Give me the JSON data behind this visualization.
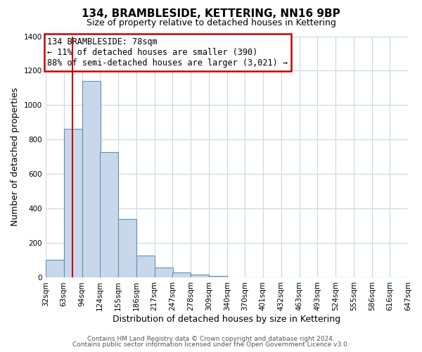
{
  "title": "134, BRAMBLESIDE, KETTERING, NN16 9BP",
  "subtitle": "Size of property relative to detached houses in Kettering",
  "xlabel": "Distribution of detached houses by size in Kettering",
  "ylabel": "Number of detached properties",
  "bar_left_edges": [
    32,
    63,
    94,
    124,
    155,
    186,
    217,
    247,
    278,
    309,
    340,
    370,
    401,
    432,
    463,
    493,
    524,
    555,
    586,
    616
  ],
  "bar_heights": [
    105,
    865,
    1140,
    730,
    340,
    130,
    60,
    30,
    20,
    10,
    0,
    0,
    0,
    0,
    0,
    0,
    0,
    0,
    0,
    0
  ],
  "bin_width": 31,
  "x_tick_labels": [
    "32sqm",
    "63sqm",
    "94sqm",
    "124sqm",
    "155sqm",
    "186sqm",
    "217sqm",
    "247sqm",
    "278sqm",
    "309sqm",
    "340sqm",
    "370sqm",
    "401sqm",
    "432sqm",
    "463sqm",
    "493sqm",
    "524sqm",
    "555sqm",
    "586sqm",
    "616sqm",
    "647sqm"
  ],
  "x_tick_positions": [
    32,
    63,
    94,
    124,
    155,
    186,
    217,
    247,
    278,
    309,
    340,
    370,
    401,
    432,
    463,
    493,
    524,
    555,
    586,
    616,
    647
  ],
  "ylim": [
    0,
    1400
  ],
  "yticks": [
    0,
    200,
    400,
    600,
    800,
    1000,
    1200,
    1400
  ],
  "bar_color": "#c8d8ea",
  "bar_edge_color": "#6090b8",
  "vline_x": 78,
  "vline_color": "#cc0000",
  "annotation_text": "134 BRAMBLESIDE: 78sqm\n← 11% of detached houses are smaller (390)\n88% of semi-detached houses are larger (3,021) →",
  "annotation_box_color": "#ffffff",
  "annotation_box_edge": "#cc0000",
  "footer1": "Contains HM Land Registry data © Crown copyright and database right 2024.",
  "footer2": "Contains public sector information licensed under the Open Government Licence v3.0.",
  "bg_color": "#ffffff",
  "grid_color": "#c8d8e8",
  "title_fontsize": 11,
  "subtitle_fontsize": 9,
  "axis_label_fontsize": 9,
  "tick_fontsize": 7.5,
  "annotation_fontsize": 8.5,
  "footer_fontsize": 6.5
}
